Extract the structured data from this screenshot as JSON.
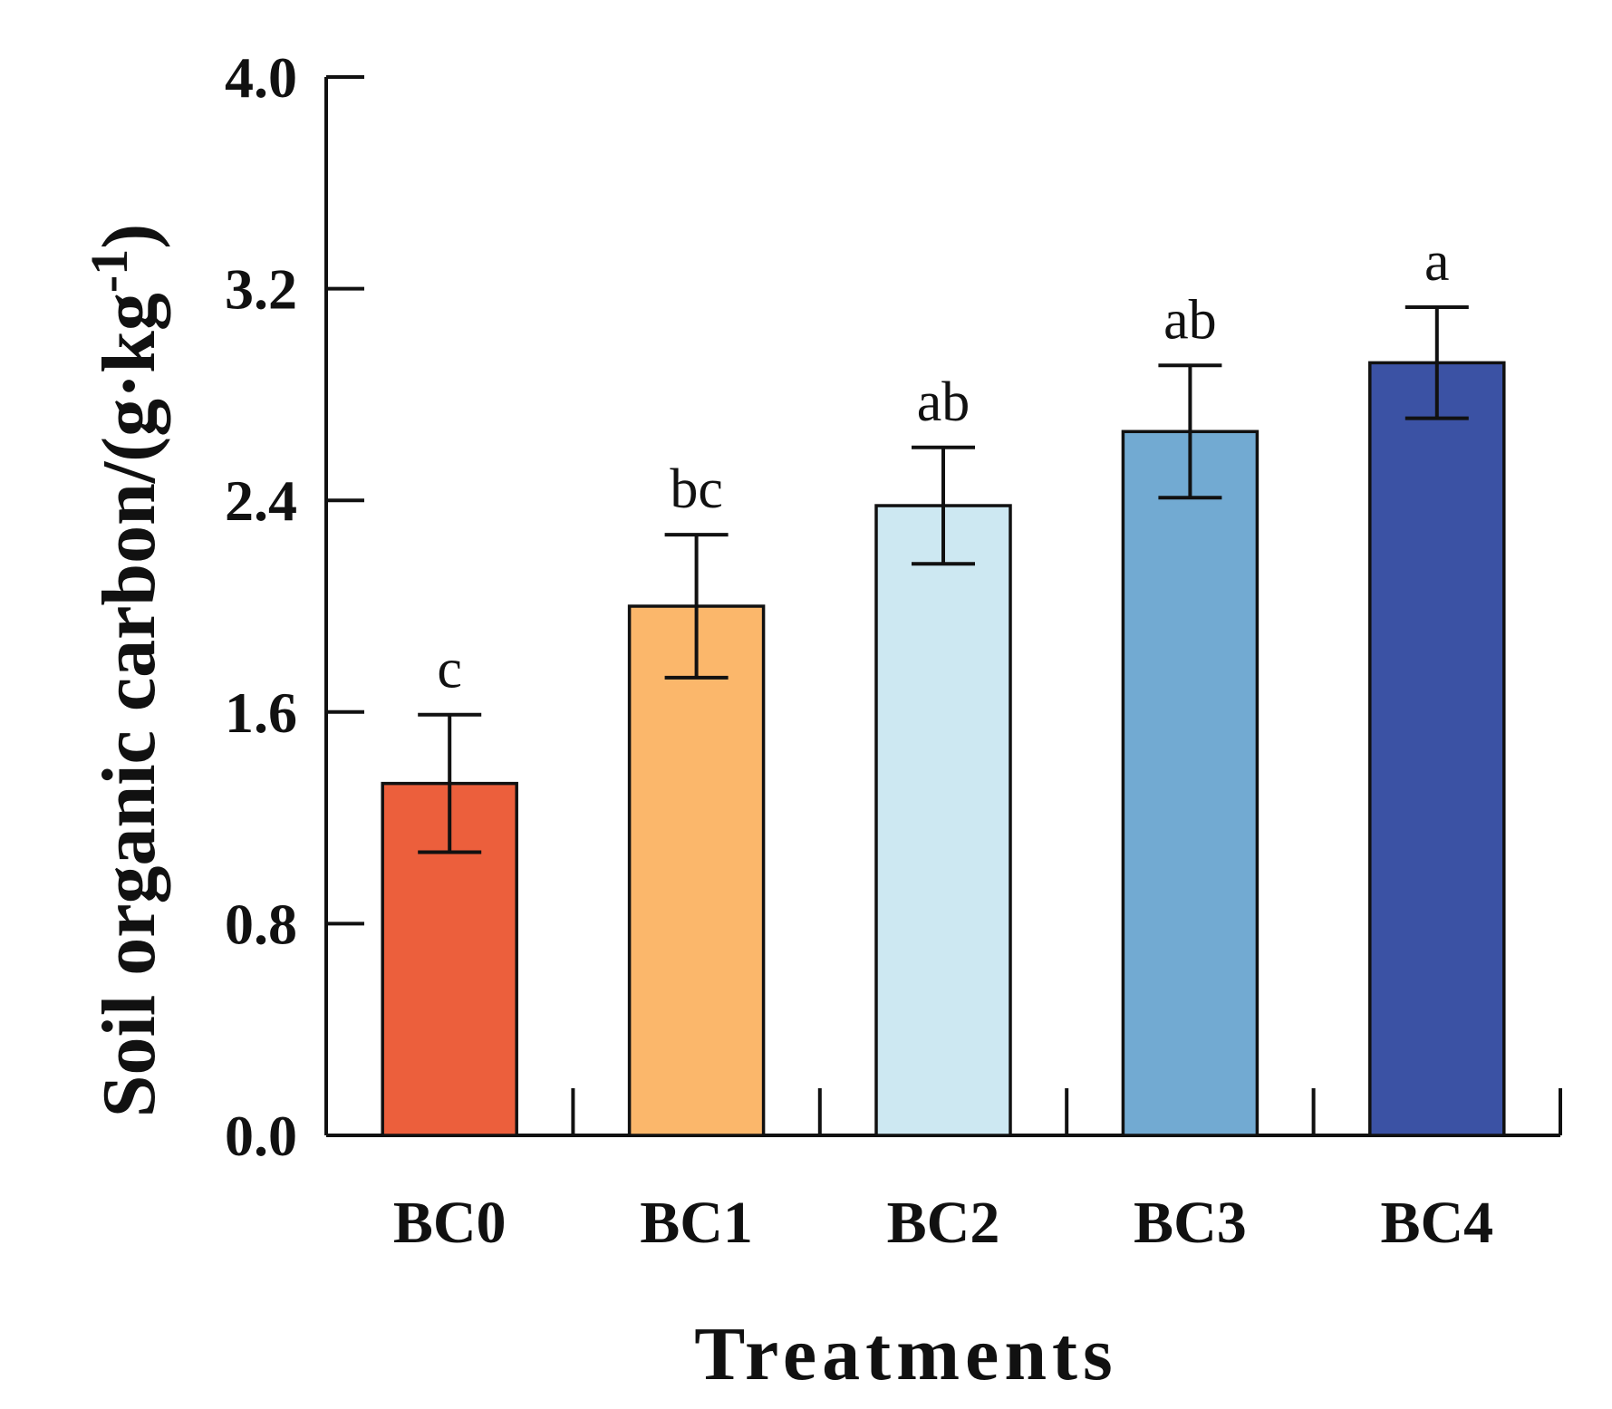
{
  "chart_data": {
    "type": "bar",
    "title": "",
    "xlabel": "Treatments",
    "ylabel": {
      "main": "Soil organic carbon/(g·kg",
      "superscript": "-1",
      "close": ")"
    },
    "ylim": [
      0,
      4.0
    ],
    "yticks": [
      "0.0",
      "0.8",
      "1.6",
      "2.4",
      "3.2",
      "4.0"
    ],
    "grid": false,
    "categories": [
      "BC0",
      "BC1",
      "BC2",
      "BC3",
      "BC4"
    ],
    "values": [
      1.33,
      2.0,
      2.38,
      2.66,
      2.92
    ],
    "errors": [
      0.26,
      0.27,
      0.22,
      0.25,
      0.21
    ],
    "significance": [
      "c",
      "bc",
      "ab",
      "ab",
      "a"
    ],
    "colors": [
      "#ec5f3c",
      "#fbb76b",
      "#cde8f2",
      "#72aad2",
      "#3b52a4"
    ]
  }
}
